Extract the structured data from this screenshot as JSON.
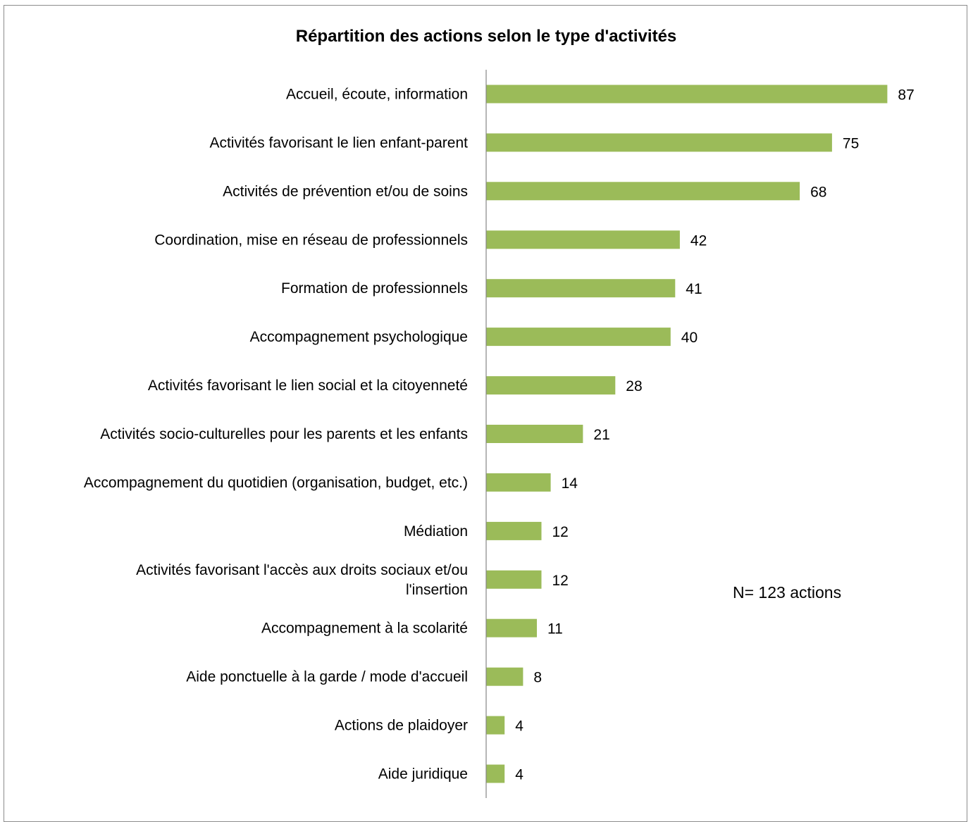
{
  "chart_data": {
    "type": "bar",
    "orientation": "horizontal",
    "title": "Répartition des actions selon le type d'activités",
    "categories": [
      "Accueil, écoute, information",
      "Activités favorisant le lien enfant-parent",
      "Activités de prévention et/ou de soins",
      "Coordination, mise en réseau de professionnels",
      "Formation de professionnels",
      "Accompagnement psychologique",
      "Activités favorisant le lien social et la citoyenneté",
      "Activités socio-culturelles pour les parents et les enfants",
      "Accompagnement du quotidien (organisation, budget, etc.)",
      "Médiation",
      "Activités favorisant l'accès aux droits sociaux et/ou l'insertion",
      "Accompagnement à la scolarité",
      "Aide ponctuelle à la garde / mode d'accueil",
      "Actions de plaidoyer",
      "Aide juridique"
    ],
    "category_lines": [
      [
        "Accueil, écoute, information"
      ],
      [
        "Activités favorisant le lien enfant-parent"
      ],
      [
        "Activités de prévention et/ou de soins"
      ],
      [
        "Coordination, mise en réseau de professionnels"
      ],
      [
        "Formation de professionnels"
      ],
      [
        "Accompagnement psychologique"
      ],
      [
        "Activités favorisant le lien social et la citoyenneté"
      ],
      [
        "Activités socio-culturelles pour les parents et les enfants"
      ],
      [
        "Accompagnement du quotidien (organisation, budget, etc.)"
      ],
      [
        "Médiation"
      ],
      [
        "Activités favorisant l'accès aux droits sociaux et/ou",
        "l'insertion"
      ],
      [
        "Accompagnement à la scolarité"
      ],
      [
        "Aide ponctuelle à la garde / mode d'accueil"
      ],
      [
        "Actions de plaidoyer"
      ],
      [
        "Aide juridique"
      ]
    ],
    "values": [
      87,
      75,
      68,
      42,
      41,
      40,
      28,
      21,
      14,
      12,
      12,
      11,
      8,
      4,
      4
    ],
    "data_labels": true,
    "annotation": "N= 123 actions",
    "bar_color": "#9bbb59",
    "axis_color": "#868686",
    "xlim": [
      0,
      100
    ],
    "grid": false,
    "legend": "none"
  }
}
